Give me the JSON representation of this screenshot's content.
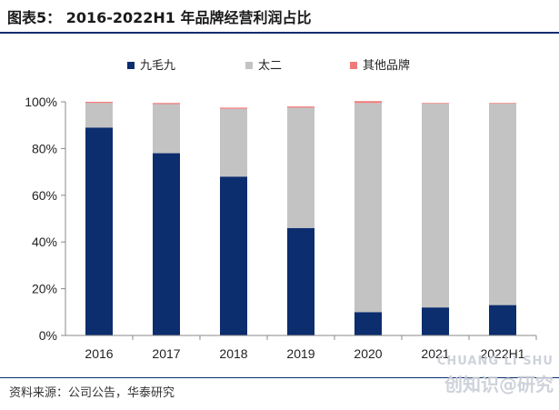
{
  "title": "图表5： 2016-2022H1 年品牌经营利润占比",
  "source": "资料来源：公司公告，华泰研究",
  "watermark": {
    "en": "CHUANG LI SHU",
    "cn": "创知识@研究"
  },
  "colors": {
    "series1": "#0c2d6e",
    "series2": "#c3c3c3",
    "series3": "#f07a7a",
    "rule": "#0c2d6e"
  },
  "chart_data": {
    "type": "bar",
    "stacked": true,
    "categories": [
      "2016",
      "2017",
      "2018",
      "2019",
      "2020",
      "2021",
      "2022H1"
    ],
    "series": [
      {
        "name": "九毛九",
        "values": [
          89,
          78,
          68,
          46,
          10,
          12,
          13
        ]
      },
      {
        "name": "太二",
        "values": [
          10.5,
          21,
          29,
          51.5,
          89.5,
          87.2,
          86.2
        ]
      },
      {
        "name": "其他品牌",
        "values": [
          0.5,
          0.5,
          0.5,
          0.5,
          0.8,
          0.3,
          0.3
        ]
      }
    ],
    "ylim": [
      0,
      100
    ],
    "yticks": [
      "0%",
      "20%",
      "40%",
      "60%",
      "80%",
      "100%"
    ],
    "legend": "top",
    "grid": false
  }
}
